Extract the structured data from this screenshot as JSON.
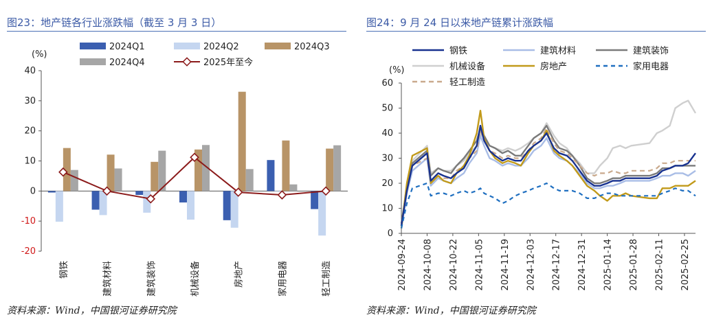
{
  "left": {
    "title": "图23：地产链各行业涨跌幅（截至 3 月 3 日）",
    "source": "资料来源：Wind，中国银河证券研究院"
  },
  "right": {
    "title": "图24：9 月 24 日以来地产链累计涨跌幅",
    "source": "资料来源：Wind，中国银河证券研究院"
  },
  "colors": {
    "title_blue": "#3b5aa6",
    "q1": "#3b5fb0",
    "q2": "#c5d6f0",
    "q3": "#b89467",
    "q4": "#a6a6a6",
    "ytd": "#8b1a1a",
    "axis_red": "#d01818",
    "steel": "#17318f",
    "materials": "#a9bde6",
    "decoration": "#7a7a7a",
    "machinery": "#cfcfcf",
    "realestate": "#c19a1a",
    "appliances": "#1f6fc0",
    "lightind": "#c9a98c"
  },
  "chart_data": [
    {
      "type": "bar",
      "unit": "(%)",
      "categories": [
        "钢铁",
        "建筑材料",
        "建筑装饰",
        "机械设备",
        "房地产",
        "家用电器",
        "轻工制造"
      ],
      "ylim": [
        -20,
        40
      ],
      "yticks": [
        -20,
        -10,
        0,
        10,
        20,
        30,
        40
      ],
      "series": [
        {
          "name": "2024Q1",
          "values": [
            -0.5,
            -6.2,
            -1.3,
            -3.8,
            -9.7,
            10.3,
            -6.0
          ]
        },
        {
          "name": "2024Q2",
          "values": [
            -10.2,
            -8.0,
            -7.2,
            -9.5,
            -12.2,
            -0.2,
            -14.8
          ]
        },
        {
          "name": "2024Q3",
          "values": [
            14.3,
            12.1,
            9.7,
            13.8,
            33.0,
            16.8,
            14.1
          ]
        },
        {
          "name": "2024Q4",
          "values": [
            7.0,
            7.5,
            13.4,
            15.3,
            7.3,
            2.2,
            15.2
          ]
        },
        {
          "name": "2025年至今",
          "values": [
            6.3,
            0.0,
            -2.6,
            11.2,
            -0.4,
            -1.3,
            0.0
          ],
          "style": "line"
        }
      ]
    },
    {
      "type": "line",
      "unit": "(%)",
      "ylim": [
        0,
        60
      ],
      "yticks": [
        0,
        10,
        20,
        30,
        40,
        50,
        60
      ],
      "x_tick_labels": [
        "2024-09-24",
        "2024-10-08",
        "2024-10-22",
        "2024-11-05",
        "2024-11-19",
        "2024-12-03",
        "2024-12-17",
        "2024-12-31",
        "2025-01-14",
        "2025-01-28",
        "2025-02-11",
        "2025-02-25"
      ],
      "x": [
        "2024-09-24",
        "2024-09-27",
        "2024-09-30",
        "2024-10-08",
        "2024-10-10",
        "2024-10-14",
        "2024-10-17",
        "2024-10-21",
        "2024-10-24",
        "2024-10-28",
        "2024-10-31",
        "2024-11-04",
        "2024-11-06",
        "2024-11-08",
        "2024-11-11",
        "2024-11-14",
        "2024-11-18",
        "2024-11-21",
        "2024-11-25",
        "2024-11-28",
        "2024-12-02",
        "2024-12-05",
        "2024-12-09",
        "2024-12-12",
        "2024-12-16",
        "2024-12-19",
        "2024-12-23",
        "2024-12-26",
        "2024-12-30",
        "2025-01-03",
        "2025-01-07",
        "2025-01-10",
        "2025-01-14",
        "2025-01-17",
        "2025-01-21",
        "2025-01-24",
        "2025-01-27",
        "2025-02-06",
        "2025-02-10",
        "2025-02-13",
        "2025-02-17",
        "2025-02-20",
        "2025-02-24",
        "2025-02-27",
        "2025-03-03"
      ],
      "series": [
        {
          "name": "钢铁",
          "values": [
            3,
            17,
            27,
            32,
            21,
            24,
            23,
            22,
            24,
            26,
            30,
            35,
            43,
            37,
            33,
            31,
            29,
            30,
            29,
            29,
            33,
            35,
            37,
            40,
            34,
            32,
            31,
            29,
            25,
            21,
            19,
            19,
            20,
            21,
            21,
            22,
            22,
            22,
            23,
            25,
            26,
            27,
            27,
            28,
            32
          ]
        },
        {
          "name": "建筑材料",
          "values": [
            2,
            16,
            25,
            30,
            19,
            22,
            21,
            20,
            22,
            24,
            28,
            32,
            39,
            35,
            30,
            29,
            27,
            28,
            27,
            27,
            30,
            33,
            35,
            38,
            32,
            30,
            29,
            27,
            24,
            20,
            18,
            18,
            19,
            19,
            20,
            21,
            21,
            21,
            22,
            23,
            23,
            24,
            24,
            23,
            25
          ]
        },
        {
          "name": "建筑装饰",
          "values": [
            4,
            18,
            28,
            33,
            23,
            26,
            25,
            24,
            27,
            30,
            33,
            37,
            42,
            39,
            35,
            34,
            32,
            33,
            31,
            31,
            35,
            38,
            40,
            43,
            37,
            34,
            33,
            31,
            27,
            22,
            20,
            20,
            21,
            22,
            22,
            23,
            23,
            23,
            24,
            26,
            26,
            27,
            27,
            27,
            27
          ]
        },
        {
          "name": "机械设备",
          "values": [
            3,
            18,
            29,
            35,
            24,
            26,
            25,
            25,
            27,
            29,
            32,
            35,
            40,
            38,
            35,
            34,
            33,
            34,
            33,
            34,
            36,
            38,
            40,
            44,
            39,
            36,
            34,
            31,
            28,
            24,
            24,
            27,
            30,
            34,
            35,
            34,
            35,
            36,
            40,
            41,
            43,
            50,
            52,
            53,
            48
          ]
        },
        {
          "name": "房地产",
          "values": [
            2,
            20,
            31,
            34,
            20,
            23,
            21,
            20,
            24,
            27,
            31,
            40,
            49,
            38,
            33,
            30,
            28,
            29,
            28,
            27,
            32,
            35,
            37,
            41,
            33,
            31,
            29,
            27,
            23,
            19,
            17,
            15,
            13,
            15,
            15,
            16,
            15,
            14,
            14,
            18,
            18,
            19,
            19,
            19,
            21
          ]
        },
        {
          "name": "家用电器",
          "values": [
            2,
            12,
            18,
            20,
            15,
            16,
            16,
            15,
            16,
            17,
            16,
            17,
            18,
            16,
            15,
            14,
            12,
            13,
            15,
            16,
            17,
            18,
            19,
            20,
            18,
            17,
            17,
            17,
            16,
            14,
            14,
            15,
            16,
            16,
            15,
            15,
            15,
            15,
            15,
            16,
            17,
            18,
            17,
            17,
            15
          ]
        },
        {
          "name": "轻工制造",
          "values": [
            3,
            17,
            27,
            30,
            21,
            23,
            22,
            22,
            25,
            27,
            30,
            33,
            41,
            37,
            33,
            32,
            30,
            31,
            30,
            30,
            33,
            36,
            38,
            42,
            36,
            33,
            32,
            30,
            27,
            24,
            23,
            24,
            24,
            25,
            24,
            24,
            25,
            25,
            26,
            28,
            28,
            29,
            29,
            29,
            29
          ]
        }
      ]
    }
  ]
}
